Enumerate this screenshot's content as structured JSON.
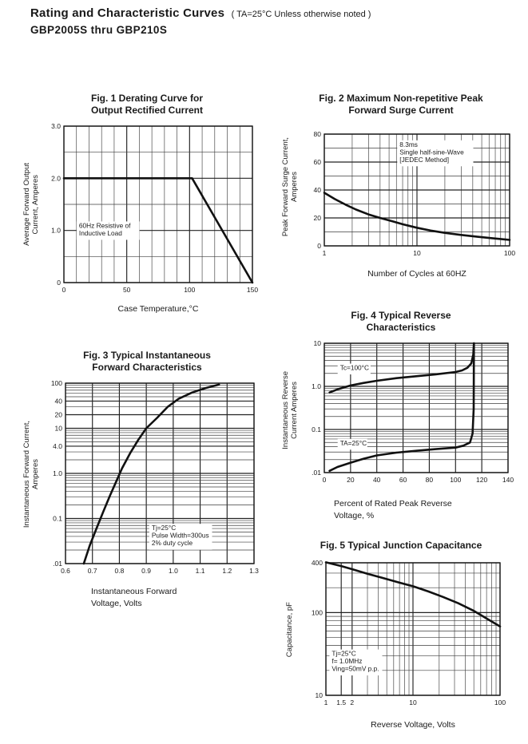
{
  "header": {
    "title": "Rating and Characteristic Curves",
    "note": "( TA=25°C Unless otherwise noted )",
    "subtitle": "GBP2005S  thru  GBP210S"
  },
  "colors": {
    "ink": "#1a1a1a",
    "grid_minor": "#3d3d3d",
    "grid_major": "#222222",
    "curve": "#111111",
    "background": "#ffffff"
  },
  "chart_data": [
    {
      "id": "fig1",
      "type": "line",
      "title_lines": [
        "Fig. 1 Derating Curve for",
        "Output Rectified Current"
      ],
      "ylabel_lines": [
        "Average Forward Output",
        "Current, Amperes"
      ],
      "xlabel_lines": [
        "Case Temperature,°C"
      ],
      "x": {
        "scale": "linear",
        "min": 0,
        "max": 150,
        "grid_step": 10,
        "major": [
          0,
          50,
          100,
          150
        ],
        "ticks": [
          {
            "v": 0,
            "label": "0"
          },
          {
            "v": 50,
            "label": "50"
          },
          {
            "v": 100,
            "label": "100"
          },
          {
            "v": 150,
            "label": "150"
          }
        ]
      },
      "y": {
        "scale": "linear",
        "min": 0,
        "max": 3,
        "grid_step": 0.5,
        "major": [
          0,
          1,
          2,
          3
        ],
        "ticks": [
          {
            "v": 3,
            "label": "3.0"
          },
          {
            "v": 2,
            "label": "2.0"
          },
          {
            "v": 1,
            "label": "1.0"
          },
          {
            "v": 0,
            "label": "0"
          }
        ]
      },
      "series": [
        {
          "name": "60Hz-derating",
          "points": [
            [
              0,
              2
            ],
            [
              102,
              2
            ],
            [
              150,
              0
            ]
          ]
        }
      ],
      "annotations": [
        {
          "lines": [
            "60Hz Resistive of",
            "Inductive Load"
          ],
          "x": 12,
          "y": 1.05,
          "boxed": false
        }
      ]
    },
    {
      "id": "fig2",
      "type": "line",
      "title_lines": [
        "Fig. 2 Maximum Non-repetitive Peak",
        "Forward Surge Current"
      ],
      "ylabel_lines": [
        "Peak Forward Surge Current,",
        "Amperes"
      ],
      "xlabel_lines": [
        "Number of Cycles at 60HZ"
      ],
      "x": {
        "scale": "log",
        "min": 1,
        "max": 100,
        "ticks": [
          {
            "v": 1,
            "label": "1"
          },
          {
            "v": 10,
            "label": "10"
          },
          {
            "v": 100,
            "label": "100"
          }
        ]
      },
      "y": {
        "scale": "linear",
        "min": 0,
        "max": 80,
        "grid_step": 10,
        "major": [
          0,
          20,
          40,
          60,
          80
        ],
        "ticks": [
          {
            "v": 80,
            "label": "80"
          },
          {
            "v": 60,
            "label": "60"
          },
          {
            "v": 40,
            "label": "40"
          },
          {
            "v": 20,
            "label": "20"
          },
          {
            "v": 0,
            "label": "0"
          }
        ]
      },
      "series": [
        {
          "name": "surge-current",
          "points": [
            [
              1,
              38
            ],
            [
              1.3,
              33.5
            ],
            [
              1.7,
              29.5
            ],
            [
              2.2,
              26
            ],
            [
              3,
              22.5
            ],
            [
              4,
              20
            ],
            [
              5.5,
              17.5
            ],
            [
              7,
              15.5
            ],
            [
              10,
              13
            ],
            [
              14,
              11
            ],
            [
              20,
              9.3
            ],
            [
              30,
              7.8
            ],
            [
              45,
              6.5
            ],
            [
              65,
              5.5
            ],
            [
              100,
              4.3
            ]
          ]
        }
      ],
      "annotations": [
        {
          "lines": [
            "8.3ms",
            "Single half-sine-Wave",
            "[JEDEC Method]"
          ],
          "x": 6.5,
          "y": 71,
          "boxed": false
        }
      ]
    },
    {
      "id": "fig3",
      "type": "line",
      "title_lines": [
        "Fig. 3 Typical Instantaneous",
        "Forward Characteristics"
      ],
      "ylabel_lines": [
        "Instantaneous Forward Current,",
        "Amperes"
      ],
      "xlabel_lines": [
        "Instantaneous Forward",
        "Voltage, Volts"
      ],
      "x": {
        "scale": "linear",
        "min": 0.6,
        "max": 1.3,
        "grid_step": 0.1,
        "major": [
          0.6,
          0.7,
          0.8,
          0.9,
          1.0,
          1.1,
          1.2,
          1.3
        ],
        "ticks": [
          {
            "v": 0.6,
            "label": "0.6"
          },
          {
            "v": 0.7,
            "label": "0.7"
          },
          {
            "v": 0.8,
            "label": "0.8"
          },
          {
            "v": 0.9,
            "label": "0.9"
          },
          {
            "v": 1.0,
            "label": "1.0"
          },
          {
            "v": 1.1,
            "label": "1.1"
          },
          {
            "v": 1.2,
            "label": "1.2"
          },
          {
            "v": 1.3,
            "label": "1.3"
          }
        ]
      },
      "y": {
        "scale": "log",
        "min": 0.01,
        "max": 100,
        "ticks": [
          {
            "v": 100,
            "label": "100"
          },
          {
            "v": 40,
            "label": "40"
          },
          {
            "v": 20,
            "label": "20"
          },
          {
            "v": 10,
            "label": "10"
          },
          {
            "v": 4,
            "label": "4.0"
          },
          {
            "v": 1,
            "label": "1.0"
          },
          {
            "v": 0.1,
            "label": "0.1"
          },
          {
            "v": 0.01,
            "label": ".01"
          }
        ]
      },
      "series": [
        {
          "name": "forward-characteristic",
          "points": [
            [
              0.668,
              0.01
            ],
            [
              0.69,
              0.025
            ],
            [
              0.715,
              0.06
            ],
            [
              0.74,
              0.14
            ],
            [
              0.765,
              0.32
            ],
            [
              0.79,
              0.7
            ],
            [
              0.81,
              1.3
            ],
            [
              0.84,
              2.8
            ],
            [
              0.87,
              5.5
            ],
            [
              0.9,
              10
            ],
            [
              0.94,
              17
            ],
            [
              0.98,
              30
            ],
            [
              1.02,
              45
            ],
            [
              1.07,
              62
            ],
            [
              1.12,
              78
            ],
            [
              1.17,
              93
            ]
          ]
        }
      ],
      "annotations": [
        {
          "lines": [
            "Tj=25°C",
            "Pulse Width=300us",
            "2% duty cycle"
          ],
          "x": 0.92,
          "y": 0.055,
          "boxed": false
        }
      ]
    },
    {
      "id": "fig4",
      "type": "line",
      "title_lines": [
        "Fig. 4 Typical Reverse",
        "Characteristics"
      ],
      "ylabel_lines": [
        "Instantaneous Reverse",
        "Current Amperes"
      ],
      "xlabel_lines": [
        "Percent of Rated Peak Reverse",
        "Voltage, %"
      ],
      "x": {
        "scale": "linear",
        "min": 0,
        "max": 140,
        "grid_step": 20,
        "major": [
          0,
          20,
          40,
          60,
          80,
          100,
          120,
          140
        ],
        "ticks": [
          {
            "v": 0,
            "label": "0"
          },
          {
            "v": 20,
            "label": "20"
          },
          {
            "v": 40,
            "label": "40"
          },
          {
            "v": 60,
            "label": "60"
          },
          {
            "v": 80,
            "label": "80"
          },
          {
            "v": 100,
            "label": "100"
          },
          {
            "v": 120,
            "label": "120"
          },
          {
            "v": 140,
            "label": "140"
          }
        ]
      },
      "y": {
        "scale": "log",
        "min": 0.01,
        "max": 10,
        "ticks": [
          {
            "v": 10,
            "label": "10"
          },
          {
            "v": 1,
            "label": "1.0"
          },
          {
            "v": 0.1,
            "label": "0.1"
          },
          {
            "v": 0.01,
            "label": ".01"
          }
        ]
      },
      "series": [
        {
          "name": "Tc=100°C",
          "points": [
            [
              4,
              0.72
            ],
            [
              10,
              0.85
            ],
            [
              20,
              1.05
            ],
            [
              30,
              1.2
            ],
            [
              40,
              1.35
            ],
            [
              55,
              1.55
            ],
            [
              70,
              1.72
            ],
            [
              85,
              1.9
            ],
            [
              100,
              2.15
            ],
            [
              105,
              2.35
            ],
            [
              109,
              2.7
            ],
            [
              112,
              3.4
            ],
            [
              113.5,
              5.5
            ],
            [
              114,
              10
            ]
          ]
        },
        {
          "name": "TA=25°C",
          "points": [
            [
              4,
              0.011
            ],
            [
              10,
              0.0135
            ],
            [
              20,
              0.017
            ],
            [
              30,
              0.021
            ],
            [
              40,
              0.025
            ],
            [
              55,
              0.029
            ],
            [
              70,
              0.032
            ],
            [
              85,
              0.035
            ],
            [
              100,
              0.038
            ],
            [
              106,
              0.042
            ],
            [
              111,
              0.05
            ],
            [
              113,
              0.08
            ],
            [
              113.8,
              0.3
            ],
            [
              114,
              10
            ]
          ]
        }
      ],
      "annotations": [
        {
          "lines": [
            "Tc=100°C"
          ],
          "x": 12,
          "y": 2.4,
          "boxed": false
        },
        {
          "lines": [
            "TA=25°C"
          ],
          "x": 12,
          "y": 0.043,
          "boxed": false
        }
      ]
    },
    {
      "id": "fig5",
      "type": "line",
      "title_lines": [
        "Fig. 5 Typical Junction Capacitance"
      ],
      "ylabel_lines": [
        "Capacitance, pF"
      ],
      "xlabel_lines": [
        "Reverse Voltage, Volts"
      ],
      "x": {
        "scale": "log",
        "min": 1,
        "max": 100,
        "extra": [
          1.5
        ],
        "ticks": [
          {
            "v": 1,
            "label": "1"
          },
          {
            "v": 1.5,
            "label": "1.5"
          },
          {
            "v": 2,
            "label": "2"
          },
          {
            "v": 10,
            "label": "10"
          },
          {
            "v": 100,
            "label": "100"
          }
        ]
      },
      "y": {
        "scale": "log",
        "min": 10,
        "max": 400,
        "ticks": [
          {
            "v": 400,
            "label": "400"
          },
          {
            "v": 100,
            "label": "100"
          },
          {
            "v": 10,
            "label": "10"
          }
        ]
      },
      "series": [
        {
          "name": "junction-capacitance",
          "points": [
            [
              1,
              405
            ],
            [
              1.5,
              365
            ],
            [
              2,
              335
            ],
            [
              3,
              295
            ],
            [
              4.5,
              262
            ],
            [
              7,
              230
            ],
            [
              10,
              208
            ],
            [
              15,
              180
            ],
            [
              22,
              155
            ],
            [
              33,
              130
            ],
            [
              50,
              105
            ],
            [
              70,
              85
            ],
            [
              100,
              68
            ]
          ]
        }
      ],
      "annotations": [
        {
          "lines": [
            "Tj=25°C",
            "f= 1.0MHz",
            "Ving=50mV p.p."
          ],
          "x": 1.17,
          "y": 30,
          "boxed": false
        }
      ]
    }
  ]
}
